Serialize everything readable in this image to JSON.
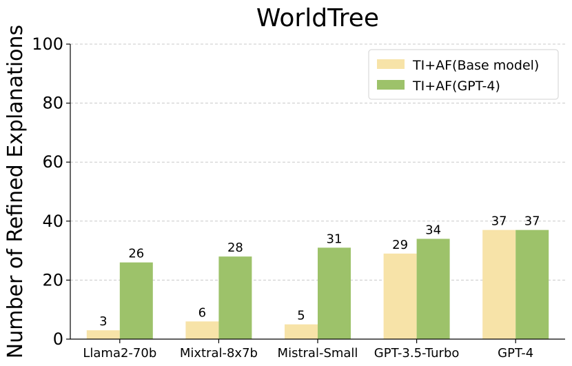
{
  "chart_data": {
    "type": "bar",
    "title": "WorldTree",
    "xlabel": "",
    "ylabel": "Number of Refined Explanations",
    "ylim": [
      0,
      100
    ],
    "yticks": [
      0,
      20,
      40,
      60,
      80,
      100
    ],
    "grid": true,
    "legend_position": "top-right",
    "categories": [
      "Llama2-70b",
      "Mixtral-8x7b",
      "Mistral-Small",
      "GPT-3.5-Turbo",
      "GPT-4"
    ],
    "series": [
      {
        "name": "TI+AF(Base model)",
        "color": "#f7e3a8",
        "values": [
          3,
          6,
          5,
          29,
          37
        ]
      },
      {
        "name": "TI+AF(GPT-4)",
        "color": "#9dc26a",
        "values": [
          26,
          28,
          31,
          34,
          37
        ]
      }
    ]
  }
}
